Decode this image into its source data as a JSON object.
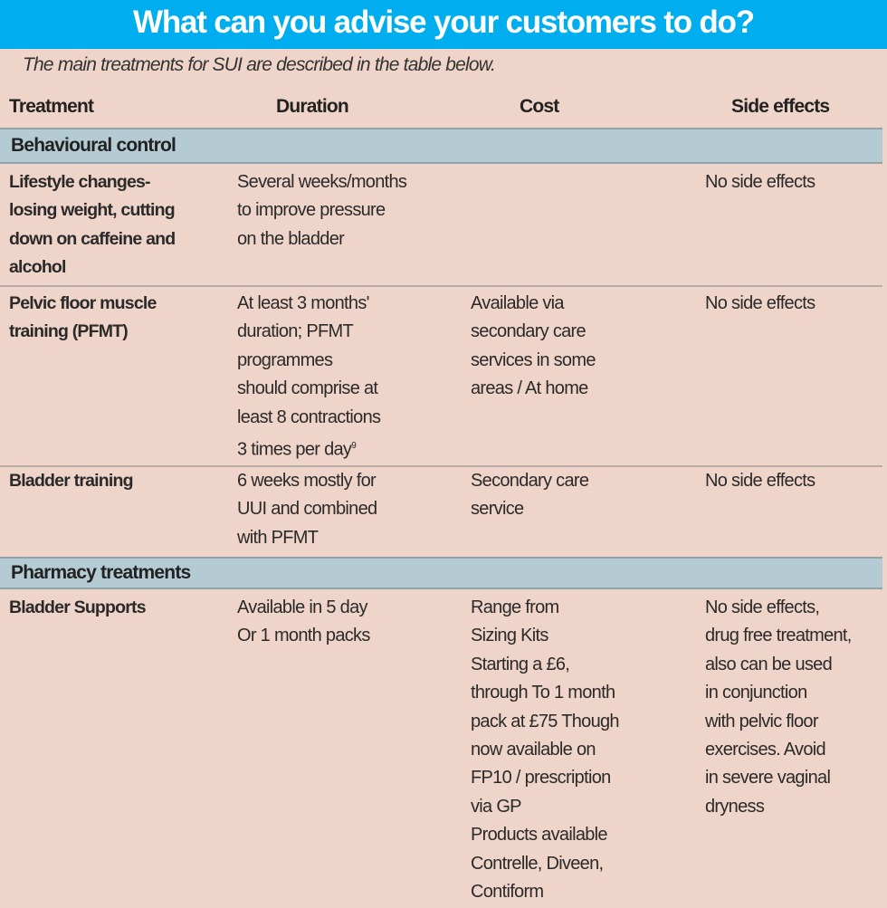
{
  "title": "What can you advise your customers to do?",
  "intro": "The main treatments for SUI are described in the table below.",
  "columns": [
    "Treatment",
    "Duration",
    "Cost",
    "Side effects"
  ],
  "sections": [
    {
      "label": "Behavioural control",
      "rows": [
        {
          "treatment": "Lifestyle changes-\nlosing weight, cutting\ndown on caffeine and\nalcohol",
          "duration": "Several weeks/months\nto improve pressure\non the bladder",
          "cost": "",
          "side_effects": "No side effects"
        },
        {
          "treatment": "Pelvic floor muscle\ntraining (PFMT)",
          "duration": "At least 3 months'\nduration; PFMT\nprogrammes\nshould comprise at\nleast 8 contractions\n3 times per day",
          "duration_ref": "9",
          "cost": "Available via\nsecondary care\nservices in some\nareas / At home",
          "side_effects": "No side effects"
        },
        {
          "treatment": "Bladder training",
          "duration": "6 weeks mostly for\nUUI and combined\nwith PFMT",
          "cost": "Secondary care\nservice",
          "side_effects": "No side effects"
        }
      ]
    },
    {
      "label": "Pharmacy treatments",
      "rows": [
        {
          "treatment": "Bladder Supports",
          "duration": "Available in 5 day\nOr 1 month packs",
          "cost": "Range from\nSizing Kits\nStarting a £6,\nthrough To 1 month\npack at £75 Though\nnow available on\nFP10 / prescription\nvia GP\nProducts available\nContrelle, Diveen,\nContiform",
          "side_effects": "No side effects,\ndrug free treatment,\nalso can be used\nin conjunction\nwith pelvic floor\nexercises. Avoid\nin severe vaginal\ndryness"
        }
      ]
    }
  ]
}
